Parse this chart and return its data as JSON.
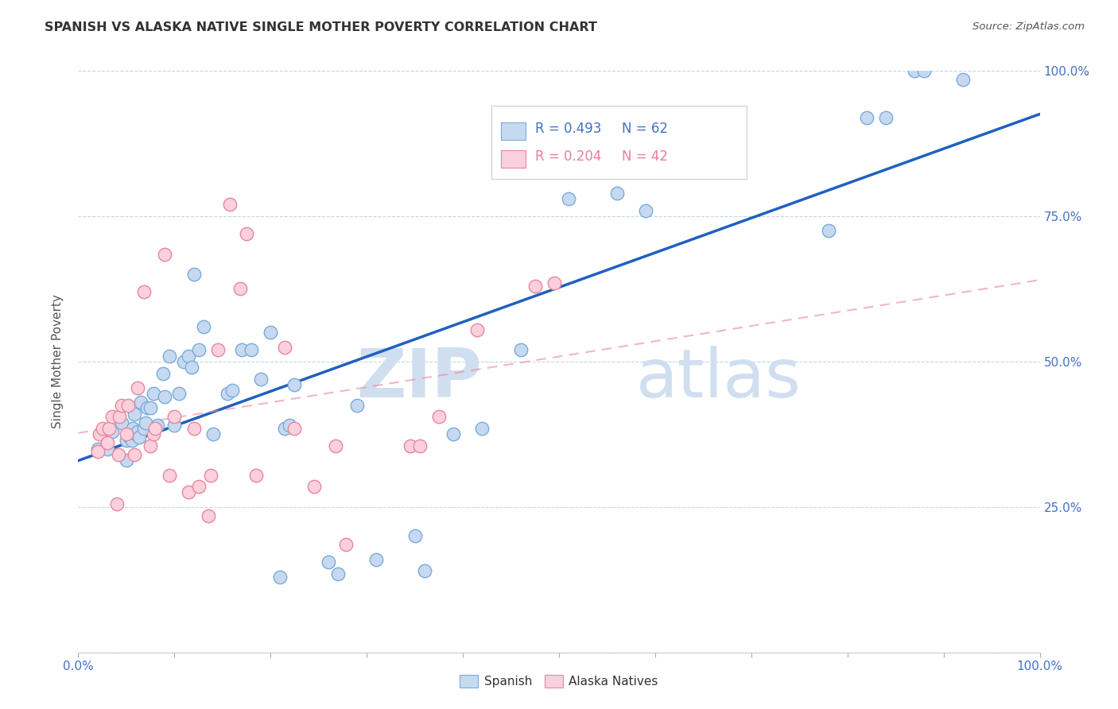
{
  "title": "SPANISH VS ALASKA NATIVE SINGLE MOTHER POVERTY CORRELATION CHART",
  "source": "Source: ZipAtlas.com",
  "ylabel": "Single Mother Poverty",
  "xlim": [
    0,
    1
  ],
  "ylim": [
    0,
    1
  ],
  "watermark_zip": "ZIP",
  "watermark_atlas": "atlas",
  "legend_blue_r": "R = 0.493",
  "legend_blue_n": "N = 62",
  "legend_pink_r": "R = 0.204",
  "legend_pink_n": "N = 42",
  "legend_label_blue": "Spanish",
  "legend_label_pink": "Alaska Natives",
  "blue_fill": "#c6d9f0",
  "blue_edge": "#7aabda",
  "pink_fill": "#f9d0dc",
  "pink_edge": "#e8879e",
  "blue_line_color": "#2060c0",
  "pink_line_color": "#e8879e",
  "grid_color": "#c8d4e8",
  "right_tick_color": "#4472c4",
  "spanish_x": [
    0.02,
    0.03,
    0.035,
    0.045,
    0.05,
    0.05,
    0.053,
    0.055,
    0.056,
    0.057,
    0.058,
    0.06,
    0.06,
    0.062,
    0.063,
    0.065,
    0.068,
    0.07,
    0.072,
    0.075,
    0.078,
    0.082,
    0.088,
    0.09,
    0.095,
    0.1,
    0.105,
    0.11,
    0.115,
    0.118,
    0.12,
    0.125,
    0.13,
    0.14,
    0.155,
    0.16,
    0.17,
    0.18,
    0.19,
    0.2,
    0.21,
    0.215,
    0.22,
    0.225,
    0.26,
    0.27,
    0.29,
    0.31,
    0.35,
    0.36,
    0.39,
    0.42,
    0.46,
    0.51,
    0.56,
    0.59,
    0.78,
    0.82,
    0.84,
    0.87,
    0.88,
    0.92
  ],
  "spanish_y": [
    0.35,
    0.35,
    0.38,
    0.395,
    0.33,
    0.365,
    0.37,
    0.375,
    0.365,
    0.385,
    0.41,
    0.375,
    0.375,
    0.38,
    0.37,
    0.43,
    0.385,
    0.395,
    0.42,
    0.42,
    0.445,
    0.39,
    0.48,
    0.44,
    0.51,
    0.39,
    0.445,
    0.5,
    0.51,
    0.49,
    0.65,
    0.52,
    0.56,
    0.375,
    0.445,
    0.45,
    0.52,
    0.52,
    0.47,
    0.55,
    0.13,
    0.385,
    0.39,
    0.46,
    0.155,
    0.135,
    0.425,
    0.16,
    0.2,
    0.14,
    0.375,
    0.385,
    0.52,
    0.78,
    0.79,
    0.76,
    0.725,
    0.92,
    0.92,
    1.0,
    1.0,
    0.985
  ],
  "alaska_x": [
    0.02,
    0.022,
    0.025,
    0.03,
    0.032,
    0.035,
    0.04,
    0.042,
    0.043,
    0.045,
    0.05,
    0.052,
    0.058,
    0.062,
    0.068,
    0.075,
    0.078,
    0.08,
    0.09,
    0.095,
    0.1,
    0.115,
    0.12,
    0.125,
    0.135,
    0.138,
    0.145,
    0.158,
    0.168,
    0.175,
    0.185,
    0.215,
    0.225,
    0.245,
    0.268,
    0.278,
    0.345,
    0.355,
    0.375,
    0.415,
    0.475,
    0.495
  ],
  "alaska_y": [
    0.345,
    0.375,
    0.385,
    0.36,
    0.385,
    0.405,
    0.255,
    0.34,
    0.405,
    0.425,
    0.375,
    0.425,
    0.34,
    0.455,
    0.62,
    0.355,
    0.375,
    0.385,
    0.685,
    0.305,
    0.405,
    0.275,
    0.385,
    0.285,
    0.235,
    0.305,
    0.52,
    0.77,
    0.625,
    0.72,
    0.305,
    0.525,
    0.385,
    0.285,
    0.355,
    0.185,
    0.355,
    0.355,
    0.405,
    0.555,
    0.63,
    0.635
  ]
}
